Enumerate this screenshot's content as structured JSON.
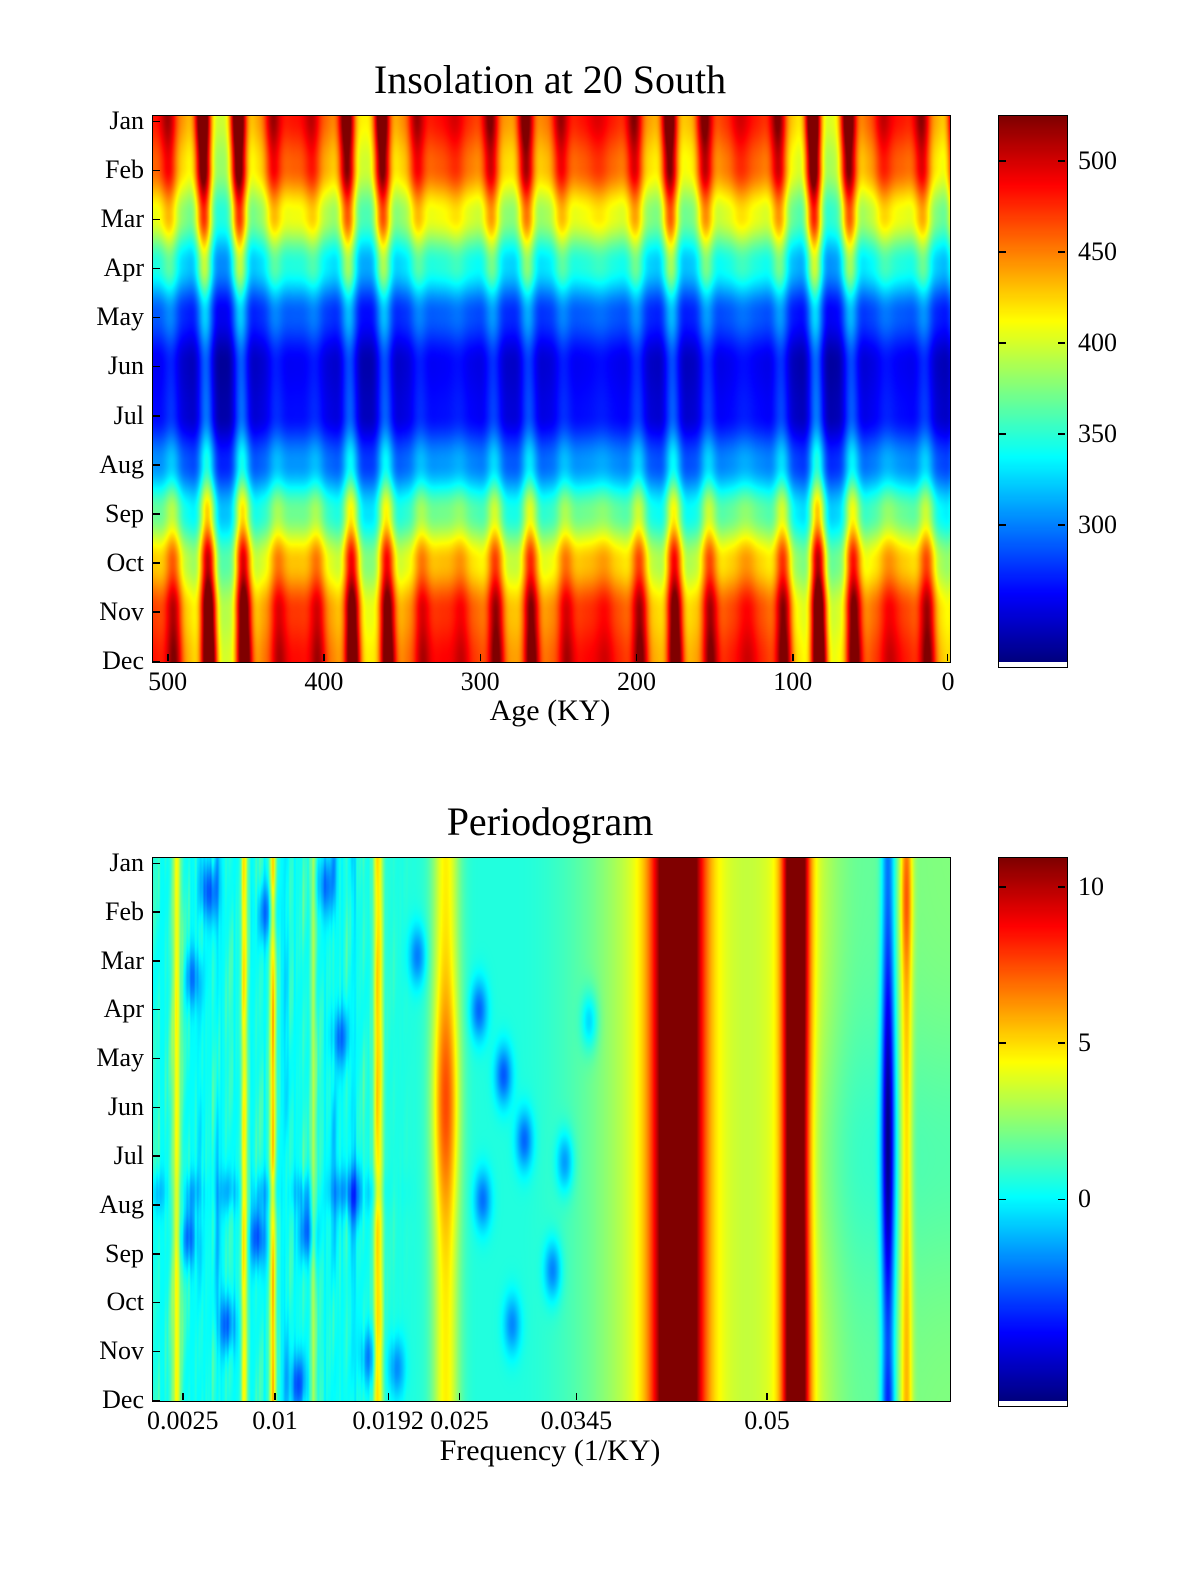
{
  "months": [
    "Jan",
    "Feb",
    "Mar",
    "Apr",
    "May",
    "Jun",
    "Jul",
    "Aug",
    "Sep",
    "Oct",
    "Nov",
    "Dec"
  ],
  "chart_data": [
    {
      "type": "heatmap",
      "title": "Insolation at 20 South",
      "xlabel": "Age (KY)",
      "x_ticks": [
        500,
        400,
        300,
        200,
        100,
        0
      ],
      "x_range": [
        510,
        0
      ],
      "x_axis_direction": "reversed",
      "y_categories": [
        "Jan",
        "Feb",
        "Mar",
        "Apr",
        "May",
        "Jun",
        "Jul",
        "Aug",
        "Sep",
        "Oct",
        "Nov",
        "Dec"
      ],
      "colormap": "jet",
      "colorbar_ticks": [
        500,
        450,
        400,
        350,
        300
      ],
      "value_range": [
        225,
        525
      ],
      "monthly_mean_insolation": [
        492,
        468,
        415,
        352,
        293,
        263,
        268,
        310,
        375,
        437,
        480,
        494
      ],
      "render_model": {
        "precession_period_ky": 23,
        "precession_amplitude": 95,
        "precession_phase": 2.78,
        "month_phase_tilt": 1.1,
        "ecc_period_ky": 96,
        "ecc_phase": 2.45,
        "ecc_long_period_ky": 413,
        "ecc_long_phase": 0.8,
        "amp_floor": 0.32,
        "amp_span": 0.68
      }
    },
    {
      "type": "heatmap",
      "title": "Periodogram",
      "xlabel": "Frequency (1/KY)",
      "x_ticks": [
        0.0025,
        0.01,
        0.0192,
        0.025,
        0.0345,
        0.05
      ],
      "x_range": [
        0,
        0.0648
      ],
      "y_categories": [
        "Jan",
        "Feb",
        "Mar",
        "Apr",
        "May",
        "Jun",
        "Jul",
        "Aug",
        "Sep",
        "Oct",
        "Nov",
        "Dec"
      ],
      "colormap": "jet",
      "colorbar_ticks": [
        10,
        5,
        0
      ],
      "value_range": [
        -6.44,
        10.96
      ],
      "spectral_peaks": [
        {
          "f": 0.0019,
          "a": 4.0,
          "sf": 0.00035
        },
        {
          "f": 0.0074,
          "a": 3.8,
          "sf": 0.00028
        },
        {
          "f": 0.0097,
          "a": 4.4,
          "sf": 0.00028
        },
        {
          "f": 0.013,
          "a": 2.8,
          "sf": 0.00022
        },
        {
          "f": 0.0183,
          "a": 4.4,
          "sf": 0.00042
        },
        {
          "f": 0.0238,
          "a": 4.0,
          "sf": 0.0011,
          "ma": 2.9,
          "m0": 0.45,
          "sm": 0.2
        },
        {
          "f": 0.0427,
          "a": 11.8,
          "sf": 0.0019
        },
        {
          "f": 0.0523,
          "a": 11.2,
          "sf": 0.001
        },
        {
          "f": 0.0613,
          "a": 3.6,
          "sf": 0.0005,
          "ma": 1.6,
          "m0": 0.08,
          "sm": 0.12
        }
      ],
      "spectral_shoulders": [
        {
          "f": 0.0427,
          "a": 2.6,
          "sf": 0.005
        },
        {
          "f": 0.0523,
          "a": 2.2,
          "sf": 0.003
        }
      ],
      "spectral_dip": {
        "f": 0.0598,
        "a": -4.2,
        "mid_extra": -3.3,
        "bottom_extra": -1.3,
        "sf": 0.00055
      },
      "background": {
        "low": 0.65,
        "high": 2.3,
        "step_center": 0.0295,
        "step_width": 0.011,
        "right_dip_f": 0.0575,
        "right_dip_a": 0.55,
        "right_dip_sf": 0.0035,
        "noise_fade_end": 0.022
      },
      "dark_blobs": [
        [
          0.0045,
          0.06,
          -3.2
        ],
        [
          0.0032,
          0.22,
          -2.6
        ],
        [
          0.0028,
          0.7,
          -3.0
        ],
        [
          0.006,
          0.86,
          -3.2
        ],
        [
          0.0092,
          0.1,
          -2.8
        ],
        [
          0.0085,
          0.7,
          -3.4
        ],
        [
          0.0118,
          0.97,
          -3.2
        ],
        [
          0.0125,
          0.69,
          -3.0
        ],
        [
          0.014,
          0.05,
          -2.6
        ],
        [
          0.0152,
          0.33,
          -2.8
        ],
        [
          0.0163,
          0.62,
          -3.0
        ],
        [
          0.0175,
          0.92,
          -2.6
        ],
        [
          0.0215,
          0.18,
          -2.8
        ],
        [
          0.0265,
          0.28,
          -3.2
        ],
        [
          0.0285,
          0.4,
          -3.4
        ],
        [
          0.0302,
          0.52,
          -3.2
        ],
        [
          0.0335,
          0.56,
          -2.8
        ],
        [
          0.0325,
          0.76,
          -3.0
        ],
        [
          0.0292,
          0.86,
          -2.6
        ],
        [
          0.0355,
          0.3,
          -2.4
        ],
        [
          0.0268,
          0.63,
          -3.0
        ],
        [
          0.0198,
          0.94,
          -2.4
        ]
      ],
      "dark_lines": [
        [
          0.0052,
          -1.6
        ],
        [
          0.0108,
          -1.5
        ],
        [
          0.0147,
          -1.8
        ],
        [
          0.0038,
          -1.4
        ],
        [
          0.0162,
          -1.3
        ]
      ]
    }
  ],
  "colors": {
    "text": "#000000",
    "axis": "#000000",
    "background": "#ffffff"
  }
}
